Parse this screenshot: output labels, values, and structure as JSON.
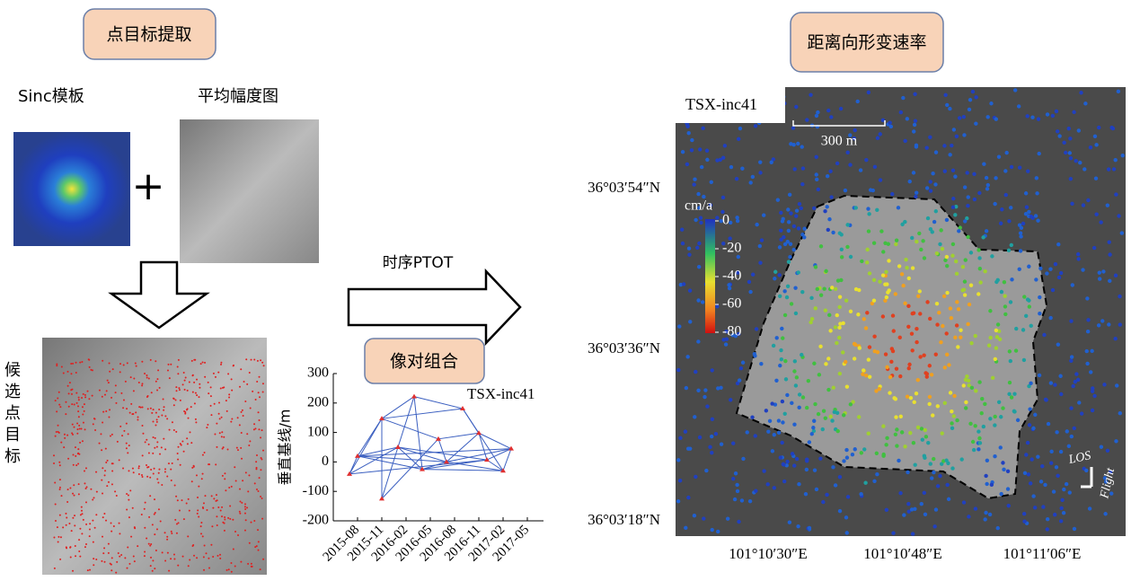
{
  "boxes": {
    "extraction": "点目标提取",
    "rate": "距离向形变速率",
    "pairs": "像对组合"
  },
  "labels": {
    "sinc": "Sinc模板",
    "mean_amp": "平均幅度图",
    "plus": "+",
    "candidates": [
      "候",
      "选",
      "点",
      "目",
      "标"
    ],
    "ptot": "时序PTOT"
  },
  "baseline_chart": {
    "type": "network",
    "ylabel": "垂直基线/m",
    "label": "TSX-inc41",
    "ylim": [
      -200,
      300
    ],
    "yticks": [
      -200,
      -100,
      0,
      100,
      200,
      300
    ],
    "xlim": [
      "2015-05",
      "2017-07"
    ],
    "xticks": [
      "2015-08",
      "2015-11",
      "2016-02",
      "2016-05",
      "2016-08",
      "2016-11",
      "2017-02",
      "2017-05"
    ],
    "points": {
      "x": [
        "2015-07",
        "2015-08",
        "2015-11",
        "2015-11",
        "2016-01",
        "2016-03",
        "2016-04",
        "2016-06",
        "2016-07",
        "2016-09",
        "2016-11",
        "2016-12",
        "2017-02",
        "2017-03"
      ],
      "y": [
        -41,
        20,
        -125,
        147,
        50,
        222,
        -25,
        78,
        0,
        181,
        98,
        7,
        -30,
        45
      ]
    },
    "pairs": [
      [
        0,
        1
      ],
      [
        0,
        3
      ],
      [
        0,
        4
      ],
      [
        1,
        3
      ],
      [
        1,
        4
      ],
      [
        1,
        6
      ],
      [
        1,
        8
      ],
      [
        2,
        3
      ],
      [
        2,
        4
      ],
      [
        2,
        7
      ],
      [
        3,
        5
      ],
      [
        3,
        7
      ],
      [
        3,
        9
      ],
      [
        4,
        5
      ],
      [
        4,
        6
      ],
      [
        4,
        8
      ],
      [
        4,
        11
      ],
      [
        5,
        9
      ],
      [
        5,
        6
      ],
      [
        6,
        8
      ],
      [
        6,
        11
      ],
      [
        7,
        8
      ],
      [
        7,
        10
      ],
      [
        8,
        10
      ],
      [
        8,
        12
      ],
      [
        8,
        13
      ],
      [
        9,
        10
      ],
      [
        9,
        12
      ],
      [
        10,
        11
      ],
      [
        10,
        13
      ],
      [
        11,
        12
      ],
      [
        11,
        13
      ],
      [
        12,
        13
      ],
      [
        1,
        13
      ],
      [
        0,
        11
      ],
      [
        6,
        12
      ]
    ],
    "color": "#3b5fc0",
    "marker_color": "#e03030"
  },
  "map": {
    "label": "TSX-inc41",
    "scale": "300 m",
    "unit": "cm/a",
    "colorbar": {
      "ticks": [
        0,
        -20,
        -40,
        -60,
        -80
      ],
      "lim": [
        0,
        -80
      ]
    },
    "lat": [
      "36°03′54″N",
      "36°03′36″N",
      "36°03′18″N"
    ],
    "lon": [
      "101°10′30″E",
      "101°10′48″E",
      "101°11′06″E"
    ],
    "los": "LOS",
    "flight": "Flight"
  }
}
